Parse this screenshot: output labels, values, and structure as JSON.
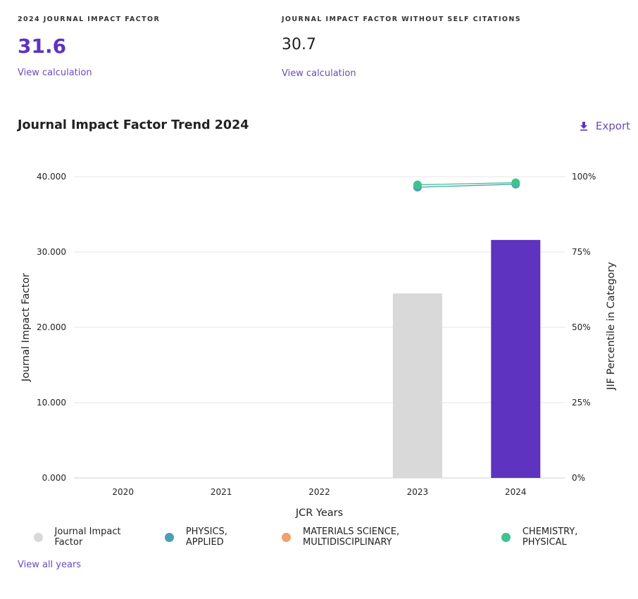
{
  "metrics": {
    "jif": {
      "label": "2024 JOURNAL IMPACT FACTOR",
      "value": "31.6",
      "link": "View calculation"
    },
    "jif_no_self": {
      "label": "JOURNAL IMPACT FACTOR WITHOUT SELF CITATIONS",
      "value": "30.7",
      "link": "View calculation"
    }
  },
  "chart_section": {
    "title": "Journal Impact Factor Trend 2024",
    "export_label": "Export"
  },
  "chart_data": {
    "type": "bar",
    "title": "Journal Impact Factor Trend 2024",
    "xlabel": "JCR Years",
    "ylabel": "Journal Impact Factor",
    "y2label": "JIF Percentile in Category",
    "categories": [
      "2020",
      "2021",
      "2022",
      "2023",
      "2024"
    ],
    "ylim": [
      0,
      40
    ],
    "y_ticks": [
      "0.000",
      "10.000",
      "20.000",
      "30.000",
      "40.000"
    ],
    "y2lim": [
      0,
      100
    ],
    "y2_ticks": [
      "0%",
      "25%",
      "50%",
      "75%",
      "100%"
    ],
    "grid": true,
    "legend_position": "bottom",
    "bar_series": {
      "name": "Journal Impact Factor",
      "values": [
        null,
        null,
        null,
        24.5,
        31.6
      ],
      "colors": [
        "#d9d9d9",
        "#d9d9d9",
        "#d9d9d9",
        "#d9d9d9",
        "#5e33bf"
      ]
    },
    "line_series": [
      {
        "name": "PHYSICS, APPLIED",
        "color": "#4a9fb5",
        "values": [
          null,
          null,
          null,
          96.5,
          97.5
        ]
      },
      {
        "name": "MATERIALS SCIENCE, MULTIDISCIPLINARY",
        "color": "#f4a06b",
        "values": [
          null,
          null,
          null,
          null,
          null
        ]
      },
      {
        "name": "CHEMISTRY, PHYSICAL",
        "color": "#3ec48e",
        "values": [
          null,
          null,
          null,
          97.3,
          98.0
        ]
      }
    ],
    "legend_colors": {
      "bar": "#d9d9d9"
    }
  },
  "view_all_years": "View all years"
}
